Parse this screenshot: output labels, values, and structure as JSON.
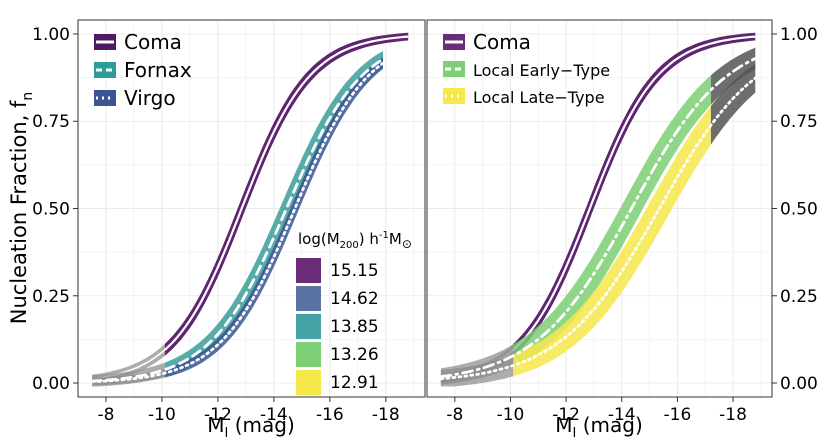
{
  "chart_data": {
    "type": "line",
    "ylabel_main": "Nucleation Fraction, f",
    "ylabel_sub": "n",
    "xlabel_main": "M",
    "xlabel_sub": "I",
    "xlabel_unit": " (mag)",
    "xlim": [
      -7.0,
      -19.4
    ],
    "ylim": [
      -0.04,
      1.04
    ],
    "xticks": [
      -8,
      -10,
      -12,
      -14,
      -16,
      -18
    ],
    "xtick_labels": [
      "-8",
      "-10",
      "-12",
      "-14",
      "-16",
      "-18"
    ],
    "yticks": [
      0.0,
      0.25,
      0.5,
      0.75,
      1.0
    ],
    "ytick_labels": [
      "0.00",
      "0.25",
      "0.50",
      "0.75",
      "1.00"
    ],
    "mass_legend": {
      "title_prefix": "log(M",
      "title_sub": "200",
      "title_mid": ") h",
      "title_sup": "-1",
      "title_suffix": "M",
      "title_sub2": "⊙",
      "entries": [
        {
          "label": "15.15",
          "color": "#6a2c78"
        },
        {
          "label": "14.62",
          "color": "#5b72a5"
        },
        {
          "label": "13.85",
          "color": "#45a3a5"
        },
        {
          "label": "13.26",
          "color": "#7ccf74"
        },
        {
          "label": "12.91",
          "color": "#f6e84a"
        }
      ]
    },
    "panels": [
      {
        "name": "left",
        "legend": [
          {
            "label": "Coma",
            "color": "#501a62",
            "style": "solid"
          },
          {
            "label": "Fornax",
            "color": "#2a9d99",
            "style": "dashed"
          },
          {
            "label": "Virgo",
            "color": "#3a5592",
            "style": "dotted"
          }
        ],
        "series": [
          {
            "name": "Coma",
            "color": "#5e2470",
            "m50": -12.85,
            "k": 0.82,
            "band": 0.03,
            "fit_range": [
              -10.1,
              -18.8
            ],
            "ext_range": [
              -7.5,
              -10.1
            ],
            "line": "band"
          },
          {
            "name": "Fornax",
            "color": "#3a9e9a",
            "m50": -14.45,
            "k": 0.74,
            "band": 0.045,
            "fit_range": [
              -10.1,
              -17.9
            ],
            "ext_range": [
              -7.5,
              -10.1
            ],
            "line": "dashed"
          },
          {
            "name": "Virgo",
            "color": "#3a5592",
            "m50": -14.75,
            "k": 0.76,
            "band": 0.03,
            "fit_range": [
              -10.1,
              -17.9
            ],
            "ext_range": [
              -7.5,
              -10.1
            ],
            "line": "dotted"
          }
        ]
      },
      {
        "name": "right",
        "legend": [
          {
            "label": "Coma",
            "color": "#6a2c78",
            "style": "solid"
          },
          {
            "label": "Local Early−Type",
            "color": "#7ccf74",
            "style": "dashed"
          },
          {
            "label": "Local Late−Type",
            "color": "#f6e84a",
            "style": "dotted"
          }
        ],
        "series": [
          {
            "name": "Coma",
            "color": "#5e2470",
            "m50": -12.85,
            "k": 0.82,
            "band": 0.03,
            "fit_range": [
              -10.1,
              -18.8
            ],
            "ext_range": [
              -7.5,
              -10.1
            ],
            "line": "band"
          },
          {
            "name": "Local Early-Type",
            "color": "#7ccf74",
            "m50": -14.35,
            "k": 0.58,
            "band": 0.06,
            "fit_range": [
              -10.1,
              -17.2
            ],
            "ext_range": [
              -7.5,
              -10.1
            ],
            "ext_range2": [
              -17.2,
              -18.8
            ],
            "line": "dashdot"
          },
          {
            "name": "Local Late-Type",
            "color": "#f6e84a",
            "m50": -15.35,
            "k": 0.56,
            "band": 0.065,
            "fit_range": [
              -10.1,
              -17.2
            ],
            "ext_range": [
              -7.5,
              -10.1
            ],
            "ext_range2": [
              -17.2,
              -18.8
            ],
            "line": "dotted"
          }
        ]
      }
    ]
  }
}
